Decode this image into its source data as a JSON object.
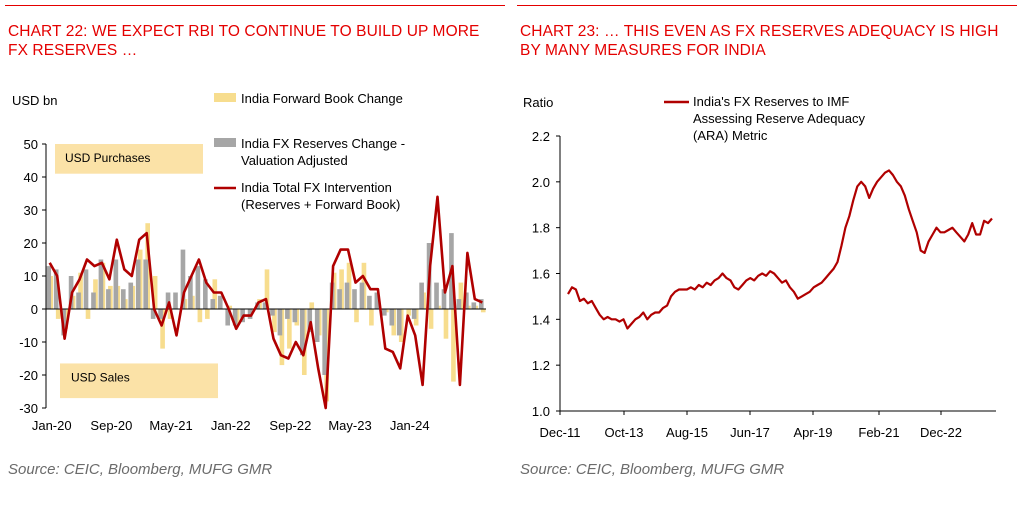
{
  "colors": {
    "accent": "#e40000",
    "line": "#b00000",
    "bar_forward": "#f7dd8e",
    "bar_valuation": "#a6a6a6",
    "box": "#fbe2a7",
    "source": "#6b6b6b"
  },
  "panels": [
    {
      "title": "CHART 22: WE EXPECT RBI TO CONTINUE TO BUILD UP MORE FX RESERVES …",
      "source": "Source: CEIC, Bloomberg, MUFG GMR"
    },
    {
      "title": "CHART 23: … THIS EVEN AS FX RESERVES ADEQUACY IS HIGH BY MANY MEASURES FOR INDIA",
      "source": "Source: CEIC, Bloomberg, MUFG GMR"
    }
  ],
  "chart_data": [
    {
      "type": "bar",
      "combo": "bar+line",
      "ylabel": "USD bn",
      "ylim": [
        -30,
        50
      ],
      "yticks": [
        -30,
        -20,
        -10,
        0,
        10,
        20,
        30,
        40,
        50
      ],
      "x_tick_labels": [
        "Jan-20",
        "Sep-20",
        "May-21",
        "Jan-22",
        "Sep-22",
        "May-23",
        "Jan-24"
      ],
      "annotations": [
        "USD Purchases",
        "USD Sales"
      ],
      "legend_position": "top-right",
      "series": [
        {
          "name": "India Forward Book Change",
          "kind": "bar",
          "values": [
            10,
            -3,
            -6,
            4,
            11,
            -3,
            9,
            14,
            7,
            7,
            3,
            7,
            18,
            26,
            10,
            -12,
            -3,
            0,
            3,
            4,
            -4,
            -3,
            9,
            0,
            1,
            -5,
            0,
            0,
            3,
            12,
            -7,
            -17,
            -12,
            -5,
            -20,
            2,
            -8,
            -28,
            11,
            12,
            14,
            -4,
            14,
            -5,
            1,
            -1,
            -8,
            -10,
            -2,
            -5,
            5,
            -6,
            1,
            -9,
            -22,
            8,
            1,
            1,
            -1
          ]
        },
        {
          "name": "India FX Reserves Change - Valuation Adjusted",
          "kind": "bar",
          "values": [
            13,
            12,
            -8,
            10,
            5,
            12,
            5,
            15,
            6,
            15,
            6,
            8,
            15,
            15,
            -3,
            -3,
            5,
            5,
            18,
            10,
            13,
            9,
            3,
            4,
            -5,
            -5,
            -4,
            -3,
            2,
            2,
            -2,
            -8,
            -3,
            -4,
            -14,
            -7,
            -10,
            -20,
            8,
            6,
            8,
            6,
            8,
            4,
            5,
            -2,
            -5,
            -8,
            0,
            -3,
            8,
            20,
            8,
            6,
            23,
            3,
            5,
            2,
            3
          ]
        },
        {
          "name": "India Total FX Intervention (Reserves + Forward Book)",
          "kind": "line",
          "values": [
            14,
            10,
            -9,
            5,
            9,
            15,
            13,
            14,
            9,
            21,
            12,
            10,
            21,
            23,
            0,
            -5,
            2,
            -8,
            5,
            10,
            15,
            8,
            5,
            5,
            0,
            -6,
            -2,
            -2,
            2,
            3,
            -9,
            -14,
            -15,
            -10,
            -14,
            -4,
            -18,
            -30,
            13,
            18,
            18,
            8,
            10,
            6,
            6,
            -12,
            -13,
            -18,
            -2,
            -8,
            -23,
            13,
            34,
            5,
            13,
            -23,
            17,
            3,
            2
          ]
        }
      ]
    },
    {
      "type": "line",
      "ylabel": "Ratio",
      "ylim": [
        1.0,
        2.2
      ],
      "yticks": [
        1.0,
        1.2,
        1.4,
        1.6,
        1.8,
        2.0,
        2.2
      ],
      "x_tick_labels": [
        "Dec-11",
        "Oct-13",
        "Aug-15",
        "Jun-17",
        "Apr-19",
        "Feb-21",
        "Dec-22"
      ],
      "legend_position": "top-right",
      "series": [
        {
          "name": "India's FX Reserves to IMF Assessing Reserve Adequacy (ARA) Metric",
          "values": [
            1.51,
            1.54,
            1.53,
            1.48,
            1.49,
            1.47,
            1.48,
            1.45,
            1.42,
            1.4,
            1.41,
            1.4,
            1.4,
            1.39,
            1.4,
            1.36,
            1.38,
            1.4,
            1.41,
            1.43,
            1.4,
            1.42,
            1.43,
            1.43,
            1.45,
            1.46,
            1.5,
            1.52,
            1.53,
            1.53,
            1.53,
            1.54,
            1.53,
            1.55,
            1.54,
            1.56,
            1.55,
            1.57,
            1.58,
            1.6,
            1.58,
            1.57,
            1.54,
            1.53,
            1.55,
            1.57,
            1.58,
            1.57,
            1.59,
            1.6,
            1.59,
            1.61,
            1.6,
            1.58,
            1.56,
            1.57,
            1.54,
            1.52,
            1.49,
            1.5,
            1.51,
            1.52,
            1.54,
            1.55,
            1.56,
            1.58,
            1.6,
            1.62,
            1.65,
            1.72,
            1.8,
            1.85,
            1.92,
            1.98,
            2.0,
            1.98,
            1.93,
            1.97,
            2.0,
            2.02,
            2.04,
            2.05,
            2.03,
            2.0,
            1.98,
            1.94,
            1.88,
            1.83,
            1.78,
            1.7,
            1.69,
            1.74,
            1.77,
            1.8,
            1.78,
            1.78,
            1.79,
            1.8,
            1.78,
            1.76,
            1.74,
            1.77,
            1.82,
            1.77,
            1.77,
            1.83,
            1.82,
            1.84
          ]
        }
      ]
    }
  ]
}
